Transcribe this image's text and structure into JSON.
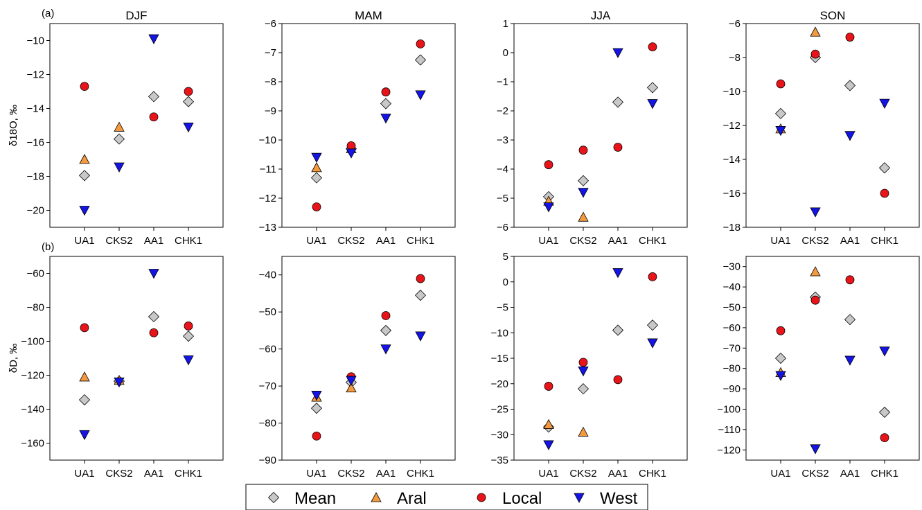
{
  "panel_labels": [
    "(a)",
    "(b)"
  ],
  "legend": [
    {
      "name": "Mean",
      "marker": "diamond",
      "color": "#c8c8c8"
    },
    {
      "name": "Aral",
      "marker": "triangle-up",
      "color": "#f39a3e"
    },
    {
      "name": "Local",
      "marker": "circle",
      "color": "#e8141a"
    },
    {
      "name": "West",
      "marker": "triangle-down",
      "color": "#1414e6"
    }
  ],
  "colors": {
    "Mean": "#c8c8c8",
    "Aral": "#f39a3e",
    "Local": "#e8141a",
    "West": "#1414e6"
  },
  "chart_data": [
    {
      "type": "scatter",
      "row": "a",
      "title": "DJF",
      "ylabel": "δ18O, ‰",
      "categories": [
        "UA1",
        "CKS2",
        "AA1",
        "CHK1"
      ],
      "ylim": [
        -21,
        -9
      ],
      "yticks": [
        -20,
        -18,
        -16,
        -14,
        -12,
        -10
      ],
      "series": [
        {
          "name": "Mean",
          "values": [
            -17.95,
            -15.8,
            -13.3,
            -13.6
          ]
        },
        {
          "name": "Aral",
          "values": [
            -17.0,
            -15.1,
            null,
            null
          ]
        },
        {
          "name": "Local",
          "values": [
            -12.7,
            null,
            -14.5,
            -13.0
          ]
        },
        {
          "name": "West",
          "values": [
            -20.0,
            -17.45,
            -9.9,
            -15.1
          ]
        }
      ]
    },
    {
      "type": "scatter",
      "row": "a",
      "title": "MAM",
      "ylabel": "",
      "categories": [
        "UA1",
        "CKS2",
        "AA1",
        "CHK1"
      ],
      "ylim": [
        -13,
        -6
      ],
      "yticks": [
        -13,
        -12,
        -11,
        -10,
        -9,
        -8,
        -7,
        -6
      ],
      "series": [
        {
          "name": "Mean",
          "values": [
            -11.3,
            -10.3,
            -8.75,
            -7.25
          ]
        },
        {
          "name": "Aral",
          "values": [
            -10.95,
            -10.3,
            null,
            null
          ]
        },
        {
          "name": "Local",
          "values": [
            -12.3,
            -10.2,
            -8.35,
            -6.7
          ]
        },
        {
          "name": "West",
          "values": [
            -10.6,
            -10.45,
            -9.25,
            -8.45
          ]
        }
      ]
    },
    {
      "type": "scatter",
      "row": "a",
      "title": "JJA",
      "ylabel": "",
      "categories": [
        "UA1",
        "CKS2",
        "AA1",
        "CHK1"
      ],
      "ylim": [
        -6,
        1
      ],
      "yticks": [
        -6,
        -5,
        -4,
        -3,
        -2,
        -1,
        0,
        1
      ],
      "series": [
        {
          "name": "Mean",
          "values": [
            -4.95,
            -4.4,
            -1.7,
            -1.2
          ]
        },
        {
          "name": "Aral",
          "values": [
            -5.1,
            -5.65,
            null,
            null
          ]
        },
        {
          "name": "Local",
          "values": [
            -3.85,
            -3.35,
            -3.25,
            0.2
          ]
        },
        {
          "name": "West",
          "values": [
            -5.3,
            -4.8,
            0.0,
            -1.75
          ]
        }
      ]
    },
    {
      "type": "scatter",
      "row": "a",
      "title": "SON",
      "ylabel": "",
      "categories": [
        "UA1",
        "CKS2",
        "AA1",
        "CHK1"
      ],
      "ylim": [
        -18,
        -6
      ],
      "yticks": [
        -18,
        -16,
        -14,
        -12,
        -10,
        -8,
        -6
      ],
      "series": [
        {
          "name": "Mean",
          "values": [
            -11.3,
            -8.0,
            -9.65,
            -14.5
          ]
        },
        {
          "name": "Aral",
          "values": [
            -12.2,
            -6.5,
            null,
            null
          ]
        },
        {
          "name": "Local",
          "values": [
            -9.55,
            -7.8,
            -6.8,
            -16.0
          ]
        },
        {
          "name": "West",
          "values": [
            -12.3,
            -17.1,
            -12.6,
            -10.7
          ]
        }
      ]
    },
    {
      "type": "scatter",
      "row": "b",
      "title": "",
      "ylabel": "δD, ‰",
      "categories": [
        "UA1",
        "CKS2",
        "AA1",
        "CHK1"
      ],
      "ylim": [
        -170,
        -50
      ],
      "yticks": [
        -160,
        -140,
        -120,
        -100,
        -80,
        -60
      ],
      "series": [
        {
          "name": "Mean",
          "values": [
            -134.5,
            -123.5,
            -85.5,
            -97.0
          ]
        },
        {
          "name": "Aral",
          "values": [
            -121.0,
            -123.0,
            null,
            null
          ]
        },
        {
          "name": "Local",
          "values": [
            -92.0,
            null,
            -95.0,
            -91.0
          ]
        },
        {
          "name": "West",
          "values": [
            -155.0,
            -124.0,
            -60.0,
            -111.0
          ]
        }
      ]
    },
    {
      "type": "scatter",
      "row": "b",
      "title": "",
      "ylabel": "",
      "categories": [
        "UA1",
        "CKS2",
        "AA1",
        "CHK1"
      ],
      "ylim": [
        -90,
        -35
      ],
      "yticks": [
        -90,
        -80,
        -70,
        -60,
        -50,
        -40
      ],
      "series": [
        {
          "name": "Mean",
          "values": [
            -76.0,
            -69.0,
            -55.0,
            -45.5
          ]
        },
        {
          "name": "Aral",
          "values": [
            -73.0,
            -70.5,
            null,
            null
          ]
        },
        {
          "name": "Local",
          "values": [
            -83.5,
            -67.5,
            -51.0,
            -41.0
          ]
        },
        {
          "name": "West",
          "values": [
            -72.5,
            -68.5,
            -60.0,
            -56.5
          ]
        }
      ]
    },
    {
      "type": "scatter",
      "row": "b",
      "title": "",
      "ylabel": "",
      "categories": [
        "UA1",
        "CKS2",
        "AA1",
        "CHK1"
      ],
      "ylim": [
        -35,
        5
      ],
      "yticks": [
        -35,
        -30,
        -25,
        -20,
        -15,
        -10,
        -5,
        0,
        5
      ],
      "series": [
        {
          "name": "Mean",
          "values": [
            -28.5,
            -21.0,
            -9.5,
            -8.5
          ]
        },
        {
          "name": "Aral",
          "values": [
            -28.0,
            -29.5,
            null,
            null
          ]
        },
        {
          "name": "Local",
          "values": [
            -20.5,
            -15.8,
            -19.2,
            1.0
          ]
        },
        {
          "name": "West",
          "values": [
            -32.0,
            -17.5,
            1.8,
            -12.0
          ]
        }
      ]
    },
    {
      "type": "scatter",
      "row": "b",
      "title": "",
      "ylabel": "",
      "categories": [
        "UA1",
        "CKS2",
        "AA1",
        "CHK1"
      ],
      "ylim": [
        -125,
        -25
      ],
      "yticks": [
        -120,
        -110,
        -100,
        -90,
        -80,
        -70,
        -60,
        -50,
        -40,
        -30
      ],
      "series": [
        {
          "name": "Mean",
          "values": [
            -75.0,
            -45.0,
            -56.0,
            -101.5
          ]
        },
        {
          "name": "Aral",
          "values": [
            -82.0,
            -32.5,
            null,
            null
          ]
        },
        {
          "name": "Local",
          "values": [
            -61.5,
            -46.5,
            -36.5,
            -114.0
          ]
        },
        {
          "name": "West",
          "values": [
            -83.5,
            -119.5,
            -76.0,
            -71.5
          ]
        }
      ]
    }
  ]
}
